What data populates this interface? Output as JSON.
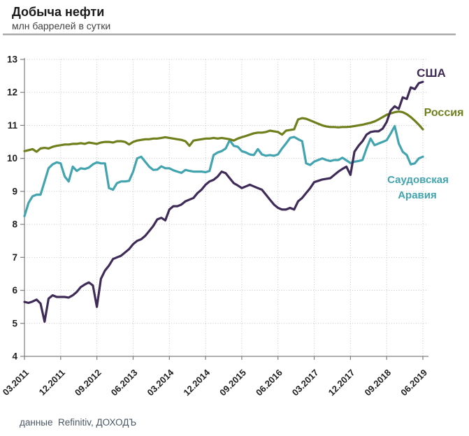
{
  "header": {
    "title": "Добыча нефти",
    "subtitle": "млн баррелей в сутки"
  },
  "footer": {
    "source": "данные  Refinitiv, ДОХОДЪ"
  },
  "colors": {
    "usa": "#3f2b57",
    "russia": "#6f7f1c",
    "saudi": "#41a4ae",
    "grid": "#c6c6c6",
    "axis": "#7f7f7f",
    "tick_label": "#212121"
  },
  "chart_data": {
    "type": "line",
    "title": "Добыча нефти",
    "subtitle": "млн баррелей в сутки",
    "ylabel": "млн баррелей в сутки",
    "ylim": [
      4,
      13
    ],
    "y_ticks": [
      4,
      5,
      6,
      7,
      8,
      9,
      10,
      11,
      12,
      13
    ],
    "grid": "dotted",
    "x_range_months": 99,
    "x_start_label": "03.2011",
    "x_end_label": "06.2019",
    "x_ticks": [
      {
        "label": "03.2011",
        "month": 0
      },
      {
        "label": "12.2011",
        "month": 9
      },
      {
        "label": "09.2012",
        "month": 18
      },
      {
        "label": "06.2013",
        "month": 27
      },
      {
        "label": "03.2014",
        "month": 36
      },
      {
        "label": "12.2014",
        "month": 45
      },
      {
        "label": "09.2015",
        "month": 54
      },
      {
        "label": "06.2016",
        "month": 63
      },
      {
        "label": "03.2017",
        "month": 72
      },
      {
        "label": "12.2017",
        "month": 81
      },
      {
        "label": "09.2018",
        "month": 90
      },
      {
        "label": "06.2019",
        "month": 99
      }
    ],
    "legend_position": "end-of-line-labels",
    "series": [
      {
        "key": "saudi",
        "name": "Саудовская Аравия",
        "label_lines": [
          "Саудовская",
          "Аравия"
        ],
        "color": "#41a4ae",
        "values": [
          8.25,
          8.65,
          8.85,
          8.9,
          8.9,
          9.3,
          9.7,
          9.82,
          9.88,
          9.85,
          9.45,
          9.3,
          9.75,
          9.62,
          9.7,
          9.68,
          9.72,
          9.82,
          9.88,
          9.85,
          9.85,
          9.1,
          9.05,
          9.25,
          9.3,
          9.3,
          9.32,
          9.6,
          10.0,
          10.05,
          9.9,
          9.75,
          9.65,
          9.66,
          9.76,
          9.7,
          9.7,
          9.64,
          9.6,
          9.56,
          9.65,
          9.62,
          9.6,
          9.6,
          9.6,
          9.58,
          9.62,
          10.1,
          10.18,
          10.22,
          10.3,
          10.55,
          10.38,
          10.35,
          10.22,
          10.18,
          10.12,
          10.1,
          10.28,
          10.12,
          10.08,
          10.1,
          10.08,
          10.12,
          10.3,
          10.45,
          10.62,
          10.65,
          10.58,
          10.52,
          9.85,
          9.8,
          9.9,
          9.95,
          10.0,
          9.95,
          9.92,
          9.95,
          9.95,
          10.02,
          9.94,
          9.86,
          9.9,
          9.92,
          9.95,
          10.3,
          10.6,
          10.4,
          10.45,
          10.5,
          10.55,
          10.75,
          10.98,
          10.45,
          10.2,
          10.1,
          9.82,
          9.85,
          10.0,
          10.05
        ]
      },
      {
        "key": "russia",
        "name": "Россия",
        "label_lines": [
          "Россия"
        ],
        "color": "#6f7f1c",
        "values": [
          10.22,
          10.25,
          10.28,
          10.2,
          10.3,
          10.32,
          10.3,
          10.35,
          10.38,
          10.4,
          10.42,
          10.42,
          10.44,
          10.44,
          10.46,
          10.44,
          10.48,
          10.46,
          10.44,
          10.48,
          10.5,
          10.5,
          10.48,
          10.52,
          10.52,
          10.5,
          10.42,
          10.5,
          10.54,
          10.56,
          10.58,
          10.58,
          10.6,
          10.6,
          10.62,
          10.64,
          10.62,
          10.6,
          10.58,
          10.56,
          10.52,
          10.38,
          10.54,
          10.56,
          10.58,
          10.6,
          10.6,
          10.62,
          10.6,
          10.62,
          10.6,
          10.58,
          10.54,
          10.6,
          10.64,
          10.68,
          10.72,
          10.76,
          10.78,
          10.78,
          10.8,
          10.84,
          10.82,
          10.8,
          10.72,
          10.84,
          10.86,
          10.88,
          11.18,
          11.22,
          11.2,
          11.15,
          11.1,
          11.05,
          11.0,
          10.97,
          10.95,
          10.95,
          10.94,
          10.95,
          10.95,
          10.96,
          10.98,
          11.0,
          11.02,
          11.05,
          11.08,
          11.12,
          11.18,
          11.25,
          11.32,
          11.36,
          11.4,
          11.42,
          11.4,
          11.34,
          11.25,
          11.14,
          11.02,
          10.88
        ]
      },
      {
        "key": "usa",
        "name": "США",
        "label_lines": [
          "США"
        ],
        "color": "#3f2b57",
        "values": [
          5.65,
          5.62,
          5.66,
          5.72,
          5.6,
          5.05,
          5.75,
          5.85,
          5.8,
          5.8,
          5.8,
          5.78,
          5.85,
          5.95,
          6.1,
          6.18,
          6.24,
          6.15,
          5.5,
          6.35,
          6.6,
          6.75,
          6.95,
          7.0,
          7.05,
          7.15,
          7.25,
          7.4,
          7.5,
          7.55,
          7.65,
          7.8,
          7.95,
          8.15,
          8.2,
          8.12,
          8.45,
          8.55,
          8.55,
          8.6,
          8.7,
          8.75,
          8.8,
          8.95,
          9.05,
          9.2,
          9.3,
          9.35,
          9.45,
          9.6,
          9.55,
          9.4,
          9.25,
          9.18,
          9.1,
          9.15,
          9.2,
          9.15,
          9.1,
          9.05,
          8.9,
          8.75,
          8.6,
          8.5,
          8.45,
          8.45,
          8.5,
          8.45,
          8.7,
          8.8,
          8.95,
          9.1,
          9.28,
          9.32,
          9.36,
          9.38,
          9.4,
          9.5,
          9.6,
          9.68,
          9.75,
          9.5,
          10.2,
          10.38,
          10.52,
          10.72,
          10.8,
          10.82,
          10.82,
          10.9,
          11.1,
          11.45,
          11.58,
          11.5,
          11.85,
          11.8,
          12.15,
          12.1,
          12.28,
          12.32
        ]
      }
    ]
  }
}
